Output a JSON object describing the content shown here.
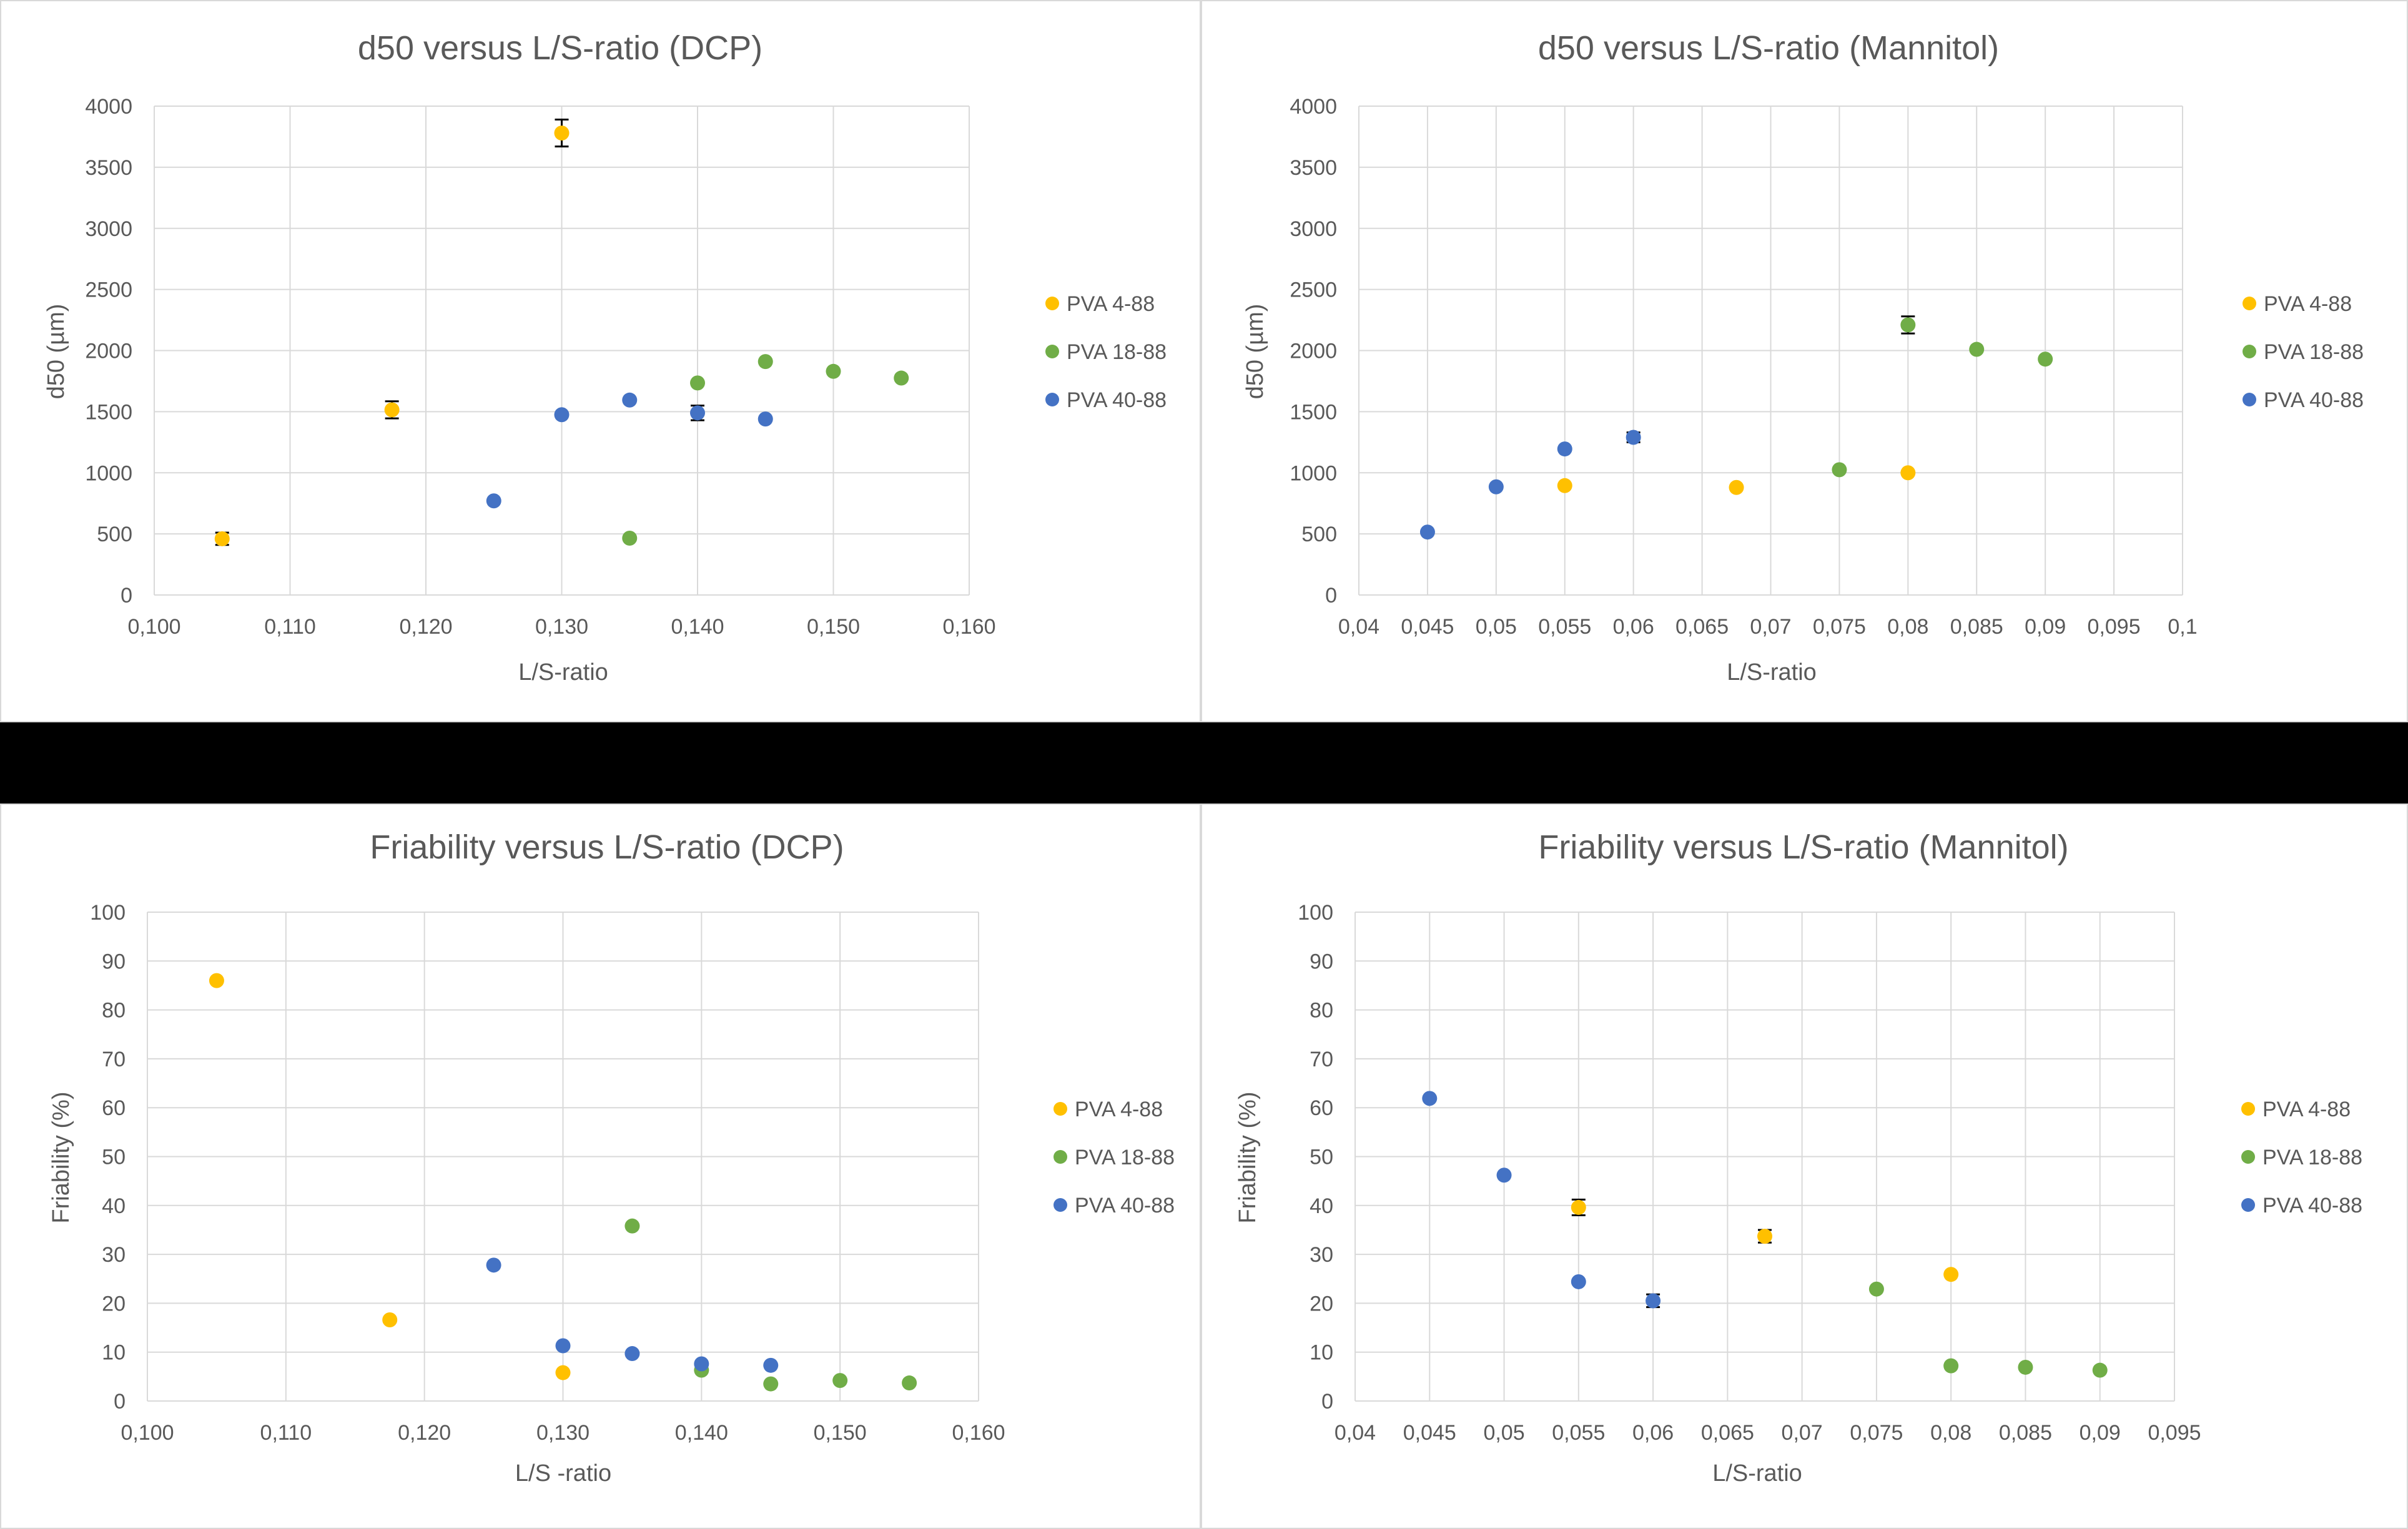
{
  "chart_data": [
    {
      "type": "scatter",
      "title": "d50 versus L/S-ratio (DCP)",
      "xlabel": "L/S-ratio",
      "ylabel": "d50 (µm)",
      "xlim": [
        0.1,
        0.16
      ],
      "ylim": [
        0,
        4000
      ],
      "x_ticks": [
        "0,100",
        "0,110",
        "0,120",
        "0,130",
        "0,140",
        "0,150",
        "0,160"
      ],
      "x_tick_values": [
        0.1,
        0.11,
        0.12,
        0.13,
        0.14,
        0.15,
        0.16
      ],
      "y_ticks": [
        "0",
        "500",
        "1000",
        "1500",
        "2000",
        "2500",
        "3000",
        "3500",
        "4000"
      ],
      "y_tick_values": [
        0,
        500,
        1000,
        1500,
        2000,
        2500,
        3000,
        3500,
        4000
      ],
      "grid": true,
      "legend_position": "right",
      "series": [
        {
          "name": "PVA 4-88",
          "color": "#FFC000",
          "x": [
            0.105,
            0.1175,
            0.13
          ],
          "y": [
            460,
            1515,
            3780
          ],
          "err": [
            50,
            70,
            110
          ]
        },
        {
          "name": "PVA 18-88",
          "color": "#70AD47",
          "x": [
            0.135,
            0.14,
            0.145,
            0.15,
            0.155
          ],
          "y": [
            465,
            1735,
            1910,
            1830,
            1775
          ],
          "err": [
            0,
            0,
            0,
            0,
            0
          ]
        },
        {
          "name": "PVA 40-88",
          "color": "#4472C4",
          "x": [
            0.125,
            0.13,
            0.135,
            0.14,
            0.145
          ],
          "y": [
            770,
            1475,
            1595,
            1490,
            1440
          ],
          "err": [
            0,
            0,
            0,
            60,
            0
          ]
        }
      ]
    },
    {
      "type": "scatter",
      "title": "d50 versus L/S-ratio (Mannitol)",
      "xlabel": "L/S-ratio",
      "ylabel": "d50 (µm)",
      "xlim": [
        0.04,
        0.1
      ],
      "ylim": [
        0,
        4000
      ],
      "x_ticks": [
        "0,04",
        "0,045",
        "0,05",
        "0,055",
        "0,06",
        "0,065",
        "0,07",
        "0,075",
        "0,08",
        "0,085",
        "0,09",
        "0,095",
        "0,1"
      ],
      "x_tick_values": [
        0.04,
        0.045,
        0.05,
        0.055,
        0.06,
        0.065,
        0.07,
        0.075,
        0.08,
        0.085,
        0.09,
        0.095,
        0.1
      ],
      "y_ticks": [
        "0",
        "500",
        "1000",
        "1500",
        "2000",
        "2500",
        "3000",
        "3500",
        "4000"
      ],
      "y_tick_values": [
        0,
        500,
        1000,
        1500,
        2000,
        2500,
        3000,
        3500,
        4000
      ],
      "grid": true,
      "legend_position": "right",
      "series": [
        {
          "name": "PVA 4-88",
          "color": "#FFC000",
          "x": [
            0.055,
            0.0675,
            0.08
          ],
          "y": [
            895,
            880,
            1000
          ],
          "err": [
            0,
            0,
            0
          ]
        },
        {
          "name": "PVA 18-88",
          "color": "#70AD47",
          "x": [
            0.075,
            0.08,
            0.085,
            0.09
          ],
          "y": [
            1025,
            2210,
            2010,
            1930
          ],
          "err": [
            0,
            70,
            0,
            0
          ]
        },
        {
          "name": "PVA 40-88",
          "color": "#4472C4",
          "x": [
            0.045,
            0.05,
            0.055,
            0.06
          ],
          "y": [
            515,
            885,
            1195,
            1290
          ],
          "err": [
            0,
            0,
            0,
            40
          ]
        }
      ]
    },
    {
      "type": "scatter",
      "title": "Friability versus L/S-ratio (DCP)",
      "xlabel": "L/S -ratio",
      "ylabel": "Friability (%)",
      "xlim": [
        0.1,
        0.16
      ],
      "ylim": [
        0,
        100
      ],
      "x_ticks": [
        "0,100",
        "0,110",
        "0,120",
        "0,130",
        "0,140",
        "0,150",
        "0,160"
      ],
      "x_tick_values": [
        0.1,
        0.11,
        0.12,
        0.13,
        0.14,
        0.15,
        0.16
      ],
      "y_ticks": [
        "0",
        "10",
        "20",
        "30",
        "40",
        "50",
        "60",
        "70",
        "80",
        "90",
        "100"
      ],
      "y_tick_values": [
        0,
        10,
        20,
        30,
        40,
        50,
        60,
        70,
        80,
        90,
        100
      ],
      "grid": true,
      "legend_position": "right",
      "series": [
        {
          "name": "PVA 4-88",
          "color": "#FFC000",
          "x": [
            0.105,
            0.1175,
            0.13
          ],
          "y": [
            86,
            16.6,
            5.8
          ],
          "err": [
            0,
            0,
            0
          ]
        },
        {
          "name": "PVA 18-88",
          "color": "#70AD47",
          "x": [
            0.135,
            0.14,
            0.145,
            0.15,
            0.155
          ],
          "y": [
            35.8,
            6.3,
            3.5,
            4.2,
            3.7
          ],
          "err": [
            0,
            0,
            0,
            0,
            0
          ]
        },
        {
          "name": "PVA 40-88",
          "color": "#4472C4",
          "x": [
            0.125,
            0.13,
            0.135,
            0.14,
            0.145
          ],
          "y": [
            27.8,
            11.3,
            9.7,
            7.6,
            7.3
          ],
          "err": [
            0,
            0,
            0,
            0,
            0
          ]
        }
      ]
    },
    {
      "type": "scatter",
      "title": "Friability versus L/S-ratio (Mannitol)",
      "xlabel": "L/S-ratio",
      "ylabel": "Friability (%)",
      "xlim": [
        0.04,
        0.095
      ],
      "ylim": [
        0,
        100
      ],
      "x_ticks": [
        "0,04",
        "0,045",
        "0,05",
        "0,055",
        "0,06",
        "0,065",
        "0,07",
        "0,075",
        "0,08",
        "0,085",
        "0,09",
        "0,095"
      ],
      "x_tick_values": [
        0.04,
        0.045,
        0.05,
        0.055,
        0.06,
        0.065,
        0.07,
        0.075,
        0.08,
        0.085,
        0.09,
        0.095
      ],
      "y_ticks": [
        "0",
        "10",
        "20",
        "30",
        "40",
        "50",
        "60",
        "70",
        "80",
        "90",
        "100"
      ],
      "y_tick_values": [
        0,
        10,
        20,
        30,
        40,
        50,
        60,
        70,
        80,
        90,
        100
      ],
      "grid": true,
      "legend_position": "right",
      "series": [
        {
          "name": "PVA 4-88",
          "color": "#FFC000",
          "x": [
            0.055,
            0.0675,
            0.08
          ],
          "y": [
            39.6,
            33.7,
            25.9
          ],
          "err": [
            1.6,
            1.3,
            0
          ]
        },
        {
          "name": "PVA 18-88",
          "color": "#70AD47",
          "x": [
            0.075,
            0.08,
            0.085,
            0.09
          ],
          "y": [
            22.9,
            7.2,
            6.9,
            6.3
          ],
          "err": [
            0,
            0,
            0,
            0
          ]
        },
        {
          "name": "PVA 40-88",
          "color": "#4472C4",
          "x": [
            0.045,
            0.05,
            0.055,
            0.06
          ],
          "y": [
            61.9,
            46.2,
            24.4,
            20.5
          ],
          "err": [
            0,
            0,
            0,
            1.3
          ]
        }
      ]
    }
  ]
}
